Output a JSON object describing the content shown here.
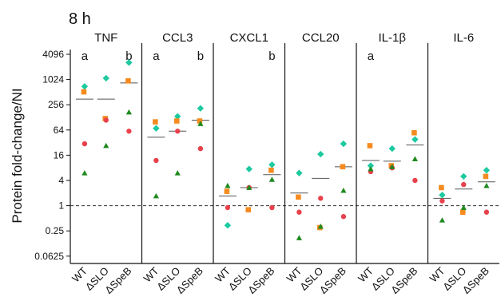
{
  "chart_data": {
    "type": "scatter",
    "title": "8 h",
    "ylabel": "Protein fold-change/NI",
    "y_scale": "log2",
    "ylim": [
      0.03,
      4096
    ],
    "yticks": [
      "4096",
      "1024",
      "256",
      "64",
      "16",
      "4",
      "1",
      "0.25",
      "0.0625"
    ],
    "ytick_values": [
      4096,
      1024,
      256,
      64,
      16,
      4,
      1,
      0.25,
      0.0625
    ],
    "reference_line": 1,
    "categories": [
      "WT",
      "ΔSLO",
      "ΔSpeB"
    ],
    "marker_colors": {
      "diamond": "#1dc9a0",
      "square": "#f58b1f",
      "circle": "#e8414b",
      "triangle": "#1e8a1e"
    },
    "panels": [
      {
        "name": "TNF",
        "significance": [
          "a",
          "",
          "b"
        ],
        "means": [
          350,
          350,
          850
        ],
        "points": [
          {
            "diamond": 700,
            "square": 520,
            "circle": 30,
            "triangle": 6
          },
          {
            "diamond": 1100,
            "square": 120,
            "circle": 110,
            "triangle": 27
          },
          {
            "diamond": 2600,
            "square": 950,
            "circle": 60,
            "triangle": 170
          }
        ]
      },
      {
        "name": "CCL3",
        "significance": [
          "a",
          "",
          "b"
        ],
        "means": [
          43,
          60,
          110
        ],
        "points": [
          {
            "diamond": 70,
            "square": 100,
            "circle": 12,
            "triangle": 1.7
          },
          {
            "diamond": 135,
            "square": 105,
            "circle": 60,
            "triangle": 6
          },
          {
            "diamond": 210,
            "square": 105,
            "circle": 23,
            "triangle": 90
          }
        ]
      },
      {
        "name": "CXCL1",
        "significance": [
          "",
          "",
          "b"
        ],
        "means": [
          1.7,
          2.7,
          5.5
        ],
        "points": [
          {
            "diamond": 0.34,
            "square": 2.2,
            "circle": 0.9,
            "triangle": 3
          },
          {
            "diamond": 7.5,
            "square": 0.8,
            "circle": 2.7,
            "triangle": 2.7
          },
          {
            "diamond": 9.5,
            "square": 7,
            "circle": 0.9,
            "triangle": 4.2
          }
        ]
      },
      {
        "name": "CCL20",
        "significance": [
          "",
          "",
          ""
        ],
        "means": [
          2,
          4.5,
          8.5
        ],
        "points": [
          {
            "diamond": 6,
            "square": 1.6,
            "circle": 0.7,
            "triangle": 0.17
          },
          {
            "diamond": 17,
            "square": 0.3,
            "circle": 1.5,
            "triangle": 0.32
          },
          {
            "diamond": 30,
            "square": 8.5,
            "circle": 0.55,
            "triangle": 2.3
          }
        ]
      },
      {
        "name": "IL-1β",
        "significance": [
          "a",
          "",
          ""
        ],
        "means": [
          12,
          11.5,
          28
        ],
        "points": [
          {
            "diamond": 9,
            "square": 27,
            "circle": 6.5,
            "triangle": 7.5
          },
          {
            "diamond": 23,
            "square": 9,
            "circle": 8,
            "triangle": 8.5
          },
          {
            "diamond": 38,
            "square": 55,
            "circle": 4,
            "triangle": 13
          }
        ]
      },
      {
        "name": "IL-6",
        "significance": [
          "",
          "",
          ""
        ],
        "means": [
          1.5,
          2.5,
          3.7
        ],
        "points": [
          {
            "diamond": 1.8,
            "square": 2.7,
            "circle": 1.3,
            "triangle": 0.45
          },
          {
            "diamond": 5,
            "square": 0.7,
            "circle": 3.2,
            "triangle": 0.9
          },
          {
            "diamond": 7,
            "square": 5,
            "circle": 0.7,
            "triangle": 3
          }
        ]
      }
    ]
  }
}
